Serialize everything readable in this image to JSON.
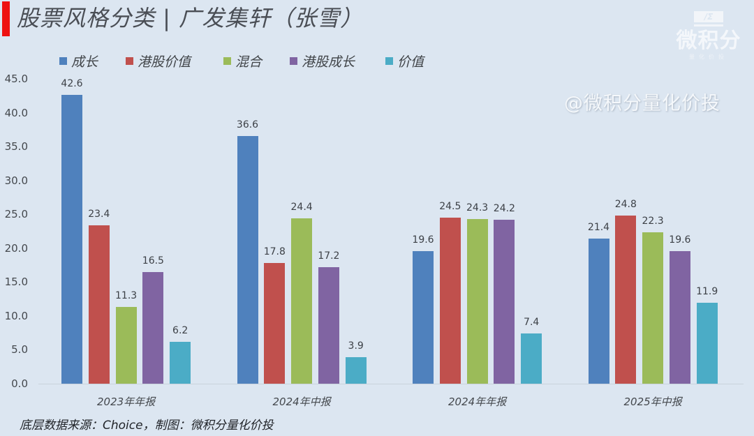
{
  "header": {
    "title": "股票风格分类 | 广发集轩（张雪）",
    "accent_color": "#ee1111"
  },
  "logo": {
    "mark": "/Σ",
    "name": "微积分",
    "subtitle": "量化价投"
  },
  "watermark": "@微积分量化价投",
  "footer": {
    "source": "底层数据来源：Choice，制图：微积分量化价投"
  },
  "chart_data": {
    "type": "bar",
    "title": "股票风格分类 | 广发集轩（张雪）",
    "xlabel": "",
    "ylabel": "",
    "ylim": [
      0,
      45
    ],
    "yticks": [
      "0.0",
      "5.0",
      "10.0",
      "15.0",
      "20.0",
      "25.0",
      "30.0",
      "35.0",
      "40.0",
      "45.0"
    ],
    "grid": false,
    "legend_position": "top",
    "categories": [
      "2023年年报",
      "2024年中报",
      "2024年年报",
      "2025年中报"
    ],
    "series": [
      {
        "name": "成长",
        "color": "#4f81bd",
        "values": [
          42.6,
          36.6,
          19.6,
          21.4
        ]
      },
      {
        "name": "港股价值",
        "color": "#c0504d",
        "values": [
          23.4,
          17.8,
          24.5,
          24.8
        ]
      },
      {
        "name": "混合",
        "color": "#9bbb59",
        "values": [
          11.3,
          24.4,
          24.3,
          22.3
        ]
      },
      {
        "name": "港股成长",
        "color": "#8064a2",
        "values": [
          16.5,
          17.2,
          24.2,
          19.6
        ]
      },
      {
        "name": "价值",
        "color": "#4bacc6",
        "values": [
          6.2,
          3.9,
          7.4,
          11.9
        ]
      }
    ]
  }
}
